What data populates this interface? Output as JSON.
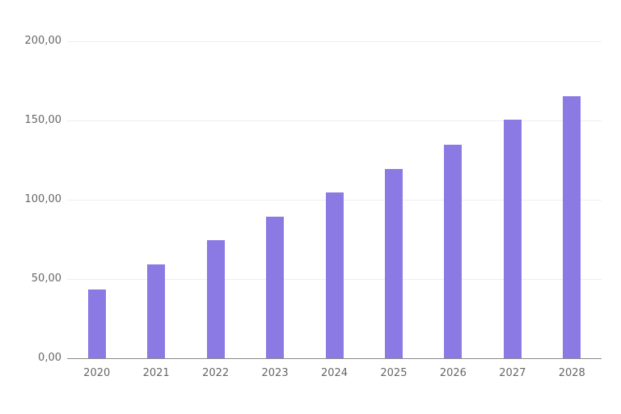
{
  "chart_data": {
    "type": "bar",
    "title": "",
    "xlabel": "",
    "ylabel": "",
    "categories": [
      "2020",
      "2021",
      "2022",
      "2023",
      "2024",
      "2025",
      "2026",
      "2027",
      "2028"
    ],
    "values": [
      43.4,
      59.0,
      74.3,
      89.5,
      104.5,
      119.6,
      134.7,
      150.3,
      165.3
    ],
    "ylim": [
      0,
      200
    ],
    "yticks": [
      0,
      50,
      100,
      150,
      200
    ],
    "ytick_labels": [
      "0,00",
      "50,00",
      "100,00",
      "150,00",
      "200,00"
    ],
    "grid": true,
    "legend": null,
    "bar_color": "#8b7ae3"
  }
}
